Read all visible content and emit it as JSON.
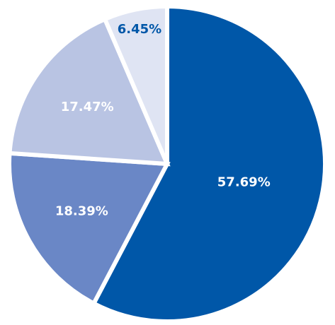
{
  "chart_data": {
    "type": "pie",
    "values": [
      57.69,
      18.39,
      17.47,
      6.45
    ],
    "value_labels": [
      "57.69%",
      "18.39%",
      "17.47%",
      "6.45%"
    ],
    "colors": [
      "#0057a8",
      "#6a87c6",
      "#b9c4e3",
      "#dfe4f3"
    ],
    "label_colors": [
      "#ffffff",
      "#ffffff",
      "#ffffff",
      "#0057a8"
    ]
  }
}
